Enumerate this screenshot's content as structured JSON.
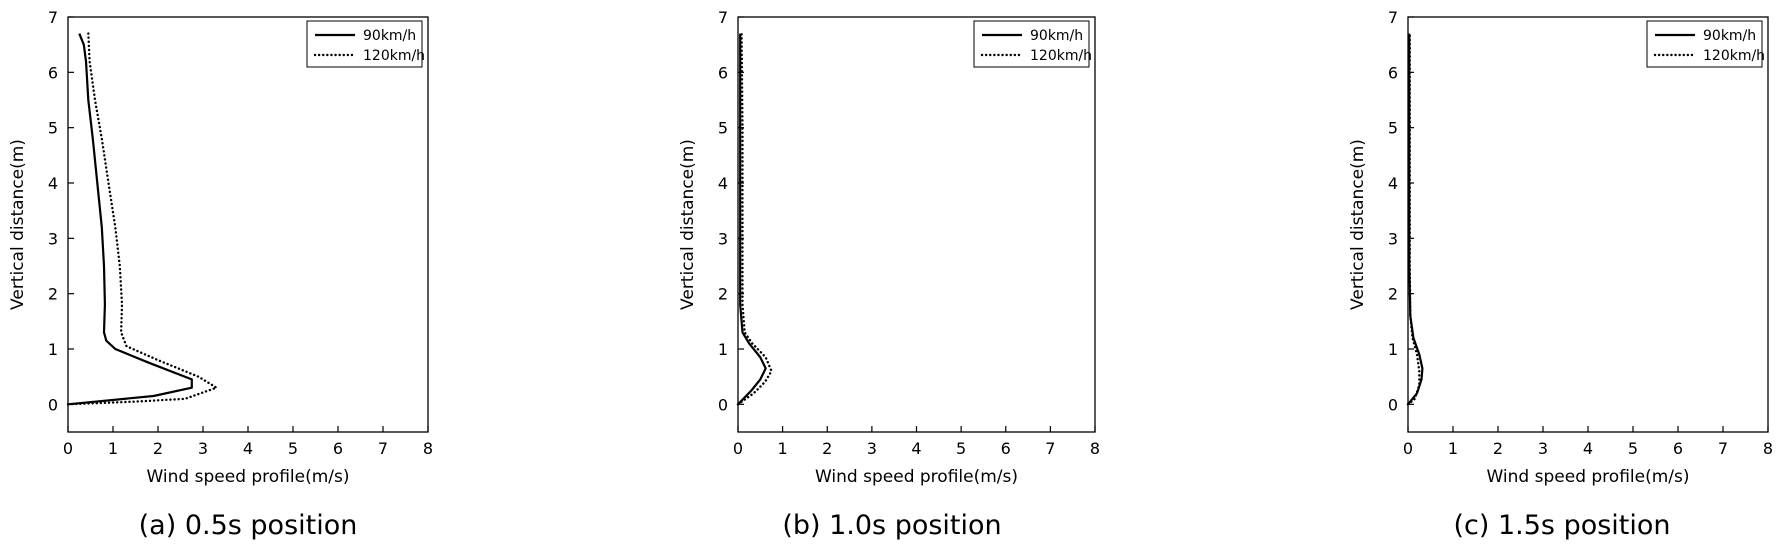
{
  "chart_data": [
    {
      "type": "line",
      "caption": "(a) 0.5s position",
      "xlabel": "Wind speed profile(m/s)",
      "ylabel": "Vertical distance(m)",
      "xlim": [
        0,
        8
      ],
      "ylim": [
        -0.5,
        7
      ],
      "xticks": [
        0,
        1,
        2,
        3,
        4,
        5,
        6,
        7,
        8
      ],
      "yticks": [
        0,
        1,
        2,
        3,
        4,
        5,
        6,
        7
      ],
      "legend_position": "top-right",
      "grid": false,
      "series": [
        {
          "name": "90km/h",
          "style": "solid",
          "points": [
            [
              0.0,
              0.0
            ],
            [
              1.9,
              0.15
            ],
            [
              2.75,
              0.3
            ],
            [
              2.75,
              0.45
            ],
            [
              1.8,
              0.75
            ],
            [
              1.05,
              1.0
            ],
            [
              0.85,
              1.15
            ],
            [
              0.8,
              1.3
            ],
            [
              0.82,
              1.8
            ],
            [
              0.8,
              2.5
            ],
            [
              0.75,
              3.2
            ],
            [
              0.65,
              4.0
            ],
            [
              0.55,
              4.8
            ],
            [
              0.45,
              5.5
            ],
            [
              0.4,
              6.2
            ],
            [
              0.35,
              6.5
            ],
            [
              0.25,
              6.7
            ]
          ]
        },
        {
          "name": "120km/h",
          "style": "dotted",
          "points": [
            [
              0.0,
              0.0
            ],
            [
              1.5,
              0.05
            ],
            [
              2.6,
              0.1
            ],
            [
              3.3,
              0.3
            ],
            [
              2.9,
              0.5
            ],
            [
              2.0,
              0.8
            ],
            [
              1.3,
              1.05
            ],
            [
              1.18,
              1.3
            ],
            [
              1.2,
              1.8
            ],
            [
              1.15,
              2.5
            ],
            [
              1.05,
              3.2
            ],
            [
              0.9,
              4.0
            ],
            [
              0.75,
              4.8
            ],
            [
              0.6,
              5.5
            ],
            [
              0.48,
              6.2
            ],
            [
              0.45,
              6.7
            ]
          ]
        }
      ]
    },
    {
      "type": "line",
      "caption": "(b) 1.0s position",
      "xlabel": "Wind speed profile(m/s)",
      "ylabel": "Vertical distance(m)",
      "xlim": [
        0,
        8
      ],
      "ylim": [
        -0.5,
        7
      ],
      "xticks": [
        0,
        1,
        2,
        3,
        4,
        5,
        6,
        7,
        8
      ],
      "yticks": [
        0,
        1,
        2,
        3,
        4,
        5,
        6,
        7
      ],
      "legend_position": "top-right",
      "grid": false,
      "series": [
        {
          "name": "90km/h",
          "style": "solid",
          "points": [
            [
              0.0,
              0.0
            ],
            [
              0.3,
              0.25
            ],
            [
              0.5,
              0.45
            ],
            [
              0.62,
              0.65
            ],
            [
              0.5,
              0.85
            ],
            [
              0.25,
              1.1
            ],
            [
              0.1,
              1.3
            ],
            [
              0.05,
              1.8
            ],
            [
              0.05,
              3.0
            ],
            [
              0.05,
              5.0
            ],
            [
              0.05,
              6.7
            ]
          ]
        },
        {
          "name": "120km/h",
          "style": "dotted",
          "points": [
            [
              0.0,
              0.0
            ],
            [
              0.35,
              0.2
            ],
            [
              0.6,
              0.4
            ],
            [
              0.75,
              0.6
            ],
            [
              0.62,
              0.85
            ],
            [
              0.32,
              1.1
            ],
            [
              0.15,
              1.3
            ],
            [
              0.1,
              1.8
            ],
            [
              0.1,
              3.0
            ],
            [
              0.1,
              5.0
            ],
            [
              0.08,
              6.7
            ]
          ]
        }
      ]
    },
    {
      "type": "line",
      "caption": "(c) 1.5s position",
      "xlabel": "Wind speed profile(m/s)",
      "ylabel": "Vertical distance(m)",
      "xlim": [
        0,
        8
      ],
      "ylim": [
        -0.5,
        7
      ],
      "xticks": [
        0,
        1,
        2,
        3,
        4,
        5,
        6,
        7,
        8
      ],
      "yticks": [
        0,
        1,
        2,
        3,
        4,
        5,
        6,
        7
      ],
      "legend_position": "top-right",
      "grid": false,
      "series": [
        {
          "name": "90km/h",
          "style": "solid",
          "points": [
            [
              0.0,
              0.0
            ],
            [
              0.2,
              0.2
            ],
            [
              0.3,
              0.45
            ],
            [
              0.32,
              0.65
            ],
            [
              0.25,
              0.9
            ],
            [
              0.12,
              1.2
            ],
            [
              0.05,
              1.6
            ],
            [
              0.03,
              2.5
            ],
            [
              0.03,
              4.0
            ],
            [
              0.03,
              6.7
            ]
          ]
        },
        {
          "name": "120km/h",
          "style": "dotted",
          "points": [
            [
              0.0,
              0.0
            ],
            [
              0.15,
              0.1
            ],
            [
              0.25,
              0.35
            ],
            [
              0.25,
              0.6
            ],
            [
              0.2,
              0.9
            ],
            [
              0.1,
              1.2
            ],
            [
              0.05,
              1.6
            ],
            [
              0.04,
              2.5
            ],
            [
              0.04,
              4.0
            ],
            [
              0.04,
              6.7
            ]
          ]
        }
      ]
    }
  ],
  "colors": {
    "line": "#000000",
    "background": "#ffffff"
  }
}
